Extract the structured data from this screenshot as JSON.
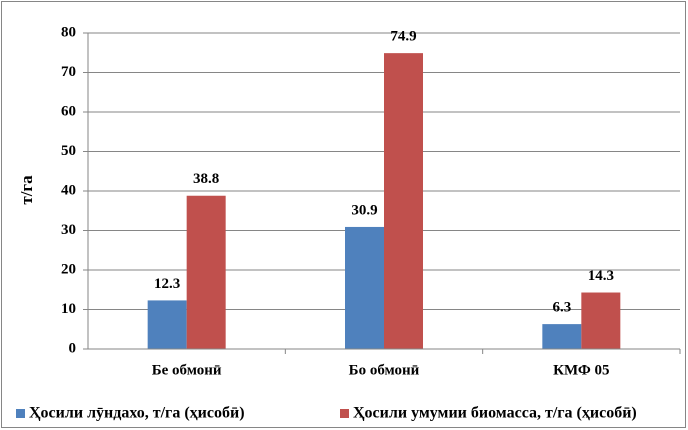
{
  "chart_data": {
    "type": "bar",
    "y_label": "т/га",
    "categories": [
      "Бе обмонӣ",
      "Бо обмонӣ",
      "КМФ 05"
    ],
    "series": [
      {
        "name": "Ҳосили лӯндахо, т/га (ҳисобӣ)",
        "color": "#4f81bd",
        "values": [
          12.3,
          30.9,
          6.3
        ]
      },
      {
        "name": "Ҳосили умумии биомасса, т/га (ҳисобӣ)",
        "color": "#c0504d",
        "values": [
          38.8,
          74.9,
          14.3
        ]
      }
    ],
    "ylim": [
      0,
      80
    ],
    "yticks": [
      0,
      10,
      20,
      30,
      40,
      50,
      60,
      70,
      80
    ],
    "grid": true,
    "legend": "bottom"
  }
}
